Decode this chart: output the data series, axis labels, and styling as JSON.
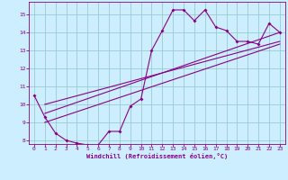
{
  "xlabel": "Windchill (Refroidissement éolien,°C)",
  "xlim": [
    -0.5,
    23.5
  ],
  "ylim": [
    7.8,
    15.7
  ],
  "xticks": [
    0,
    1,
    2,
    3,
    4,
    5,
    6,
    7,
    8,
    9,
    10,
    11,
    12,
    13,
    14,
    15,
    16,
    17,
    18,
    19,
    20,
    21,
    22,
    23
  ],
  "yticks": [
    8,
    9,
    10,
    11,
    12,
    13,
    14,
    15
  ],
  "bg_color": "#cceeff",
  "line_color": "#880088",
  "grid_color": "#99cccc",
  "curve_x": [
    0,
    1,
    2,
    3,
    4,
    5,
    6,
    7,
    8,
    9,
    10,
    11,
    12,
    13,
    14,
    15,
    16,
    17,
    18,
    19,
    20,
    21,
    22,
    23
  ],
  "curve_y": [
    10.5,
    9.3,
    8.4,
    8.0,
    7.85,
    7.75,
    7.75,
    8.5,
    8.5,
    9.9,
    10.3,
    13.0,
    14.1,
    15.25,
    15.25,
    14.65,
    15.25,
    14.3,
    14.1,
    13.5,
    13.5,
    13.35,
    14.5,
    14.0
  ],
  "line1_x": [
    1,
    23
  ],
  "line1_y": [
    9.0,
    13.35
  ],
  "line2_x": [
    1,
    23
  ],
  "line2_y": [
    9.5,
    14.0
  ],
  "line3_x": [
    1,
    23
  ],
  "line3_y": [
    10.0,
    13.5
  ]
}
